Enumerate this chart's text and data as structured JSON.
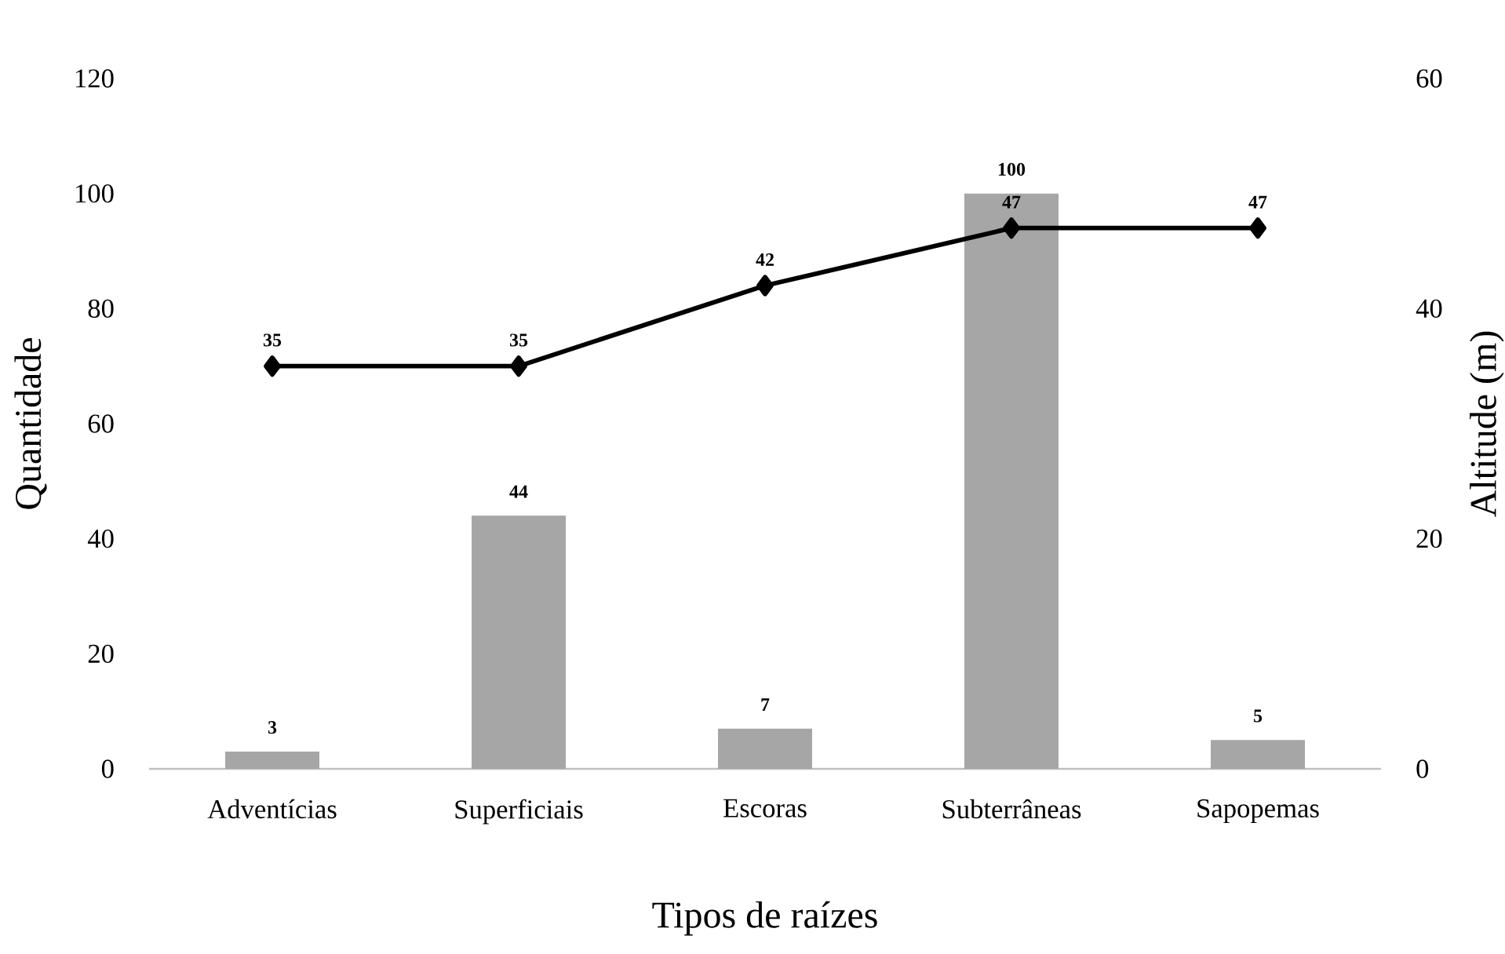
{
  "chart_data": {
    "type": "bar",
    "xlabel": "Tipos de raízes",
    "ylabel": "Quantidade",
    "y2label": "Altitude (m)",
    "categories": [
      "Adventícias",
      "Superficiais",
      "Escoras",
      "Subterrâneas",
      "Sapopemas"
    ],
    "series": [
      {
        "color": "#a6a6a6",
        "values": [
          3,
          44,
          7,
          100,
          5
        ]
      },
      {
        "type": "line",
        "axis": "y2",
        "color": "#000000",
        "marker": "diamond",
        "values": [
          35,
          35,
          42,
          47,
          47
        ]
      }
    ],
    "ylim": [
      0,
      120
    ],
    "yticks": [
      0,
      20,
      40,
      60,
      80,
      100,
      120
    ],
    "y2lim": [
      0,
      60
    ],
    "y2ticks": [
      0,
      20,
      40,
      60
    ],
    "data_labels": true,
    "grid": false
  }
}
